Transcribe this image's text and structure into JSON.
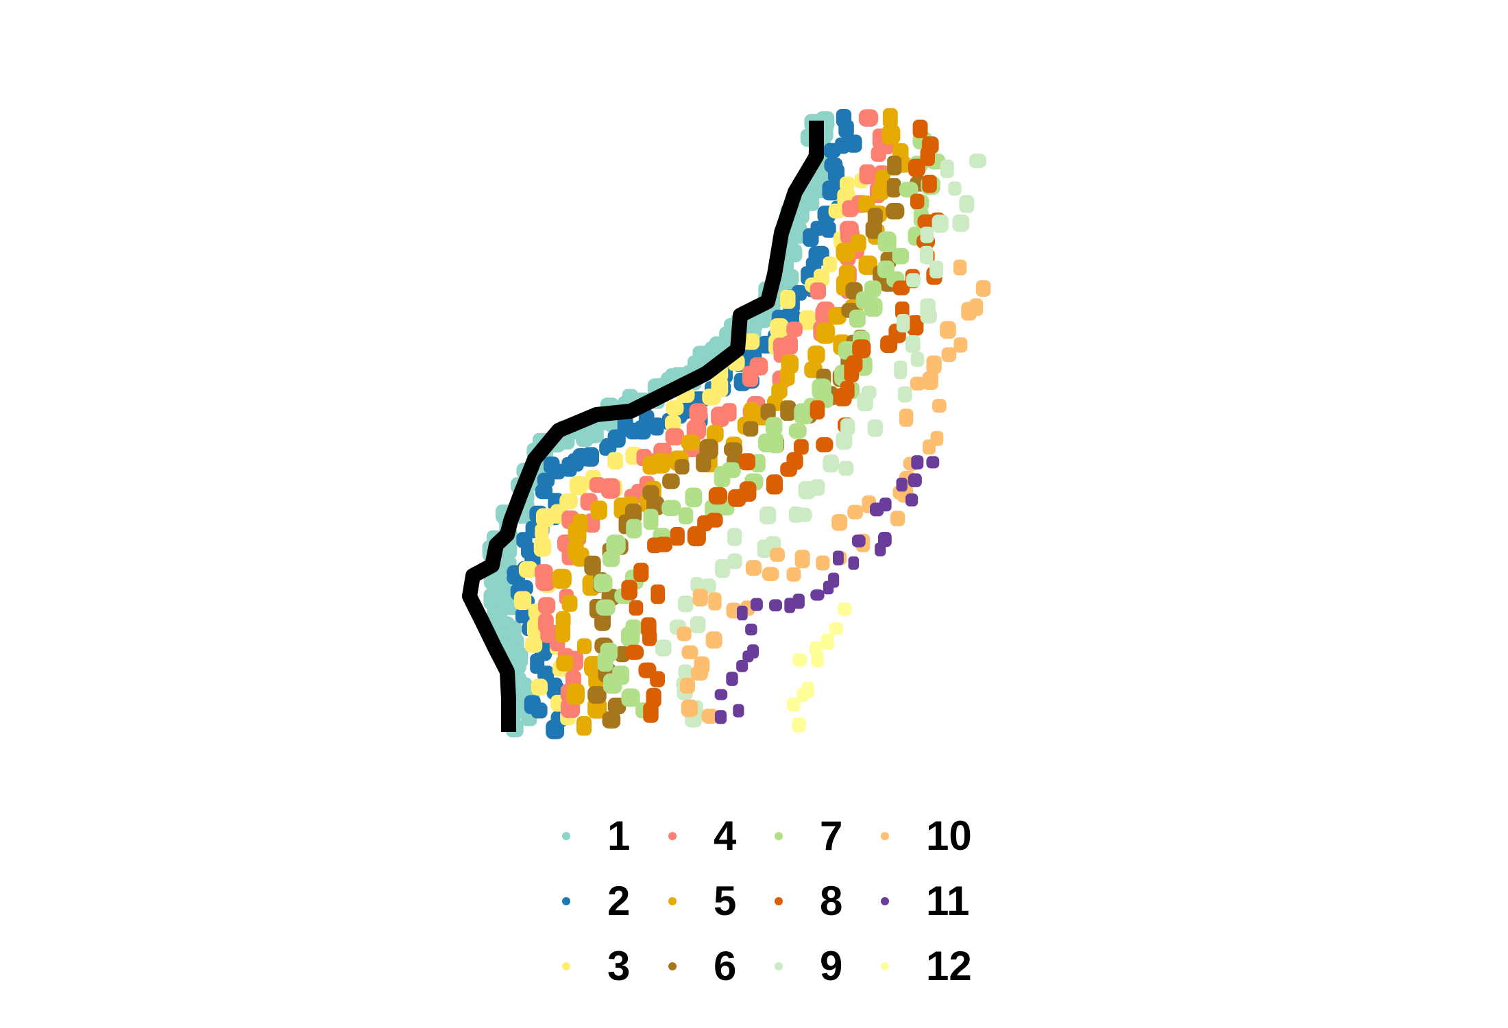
{
  "chart_data": {
    "type": "scatter",
    "title": "",
    "xlabel": "",
    "ylabel": "",
    "grid": false,
    "axes": false,
    "legend_position": "bottom",
    "boundary": {
      "color": "#000000",
      "path": [
        [
          1191,
          176
        ],
        [
          1191,
          228
        ],
        [
          1160,
          280
        ],
        [
          1140,
          340
        ],
        [
          1130,
          400
        ],
        [
          1120,
          440
        ],
        [
          1080,
          460
        ],
        [
          1076,
          510
        ],
        [
          1030,
          545
        ],
        [
          970,
          575
        ],
        [
          920,
          600
        ],
        [
          870,
          605
        ],
        [
          815,
          628
        ],
        [
          780,
          670
        ],
        [
          760,
          720
        ],
        [
          745,
          760
        ],
        [
          740,
          780
        ],
        [
          724,
          795
        ],
        [
          718,
          825
        ],
        [
          690,
          840
        ],
        [
          685,
          870
        ],
        [
          705,
          910
        ],
        [
          722,
          945
        ],
        [
          740,
          980
        ],
        [
          742,
          1020
        ],
        [
          742,
          1068
        ]
      ]
    },
    "series": [
      {
        "name": "1",
        "color": "#8DD3C7",
        "band": [
          [
            1210,
            170
          ],
          [
            1195,
            280
          ],
          [
            1160,
            360
          ],
          [
            1145,
            440
          ],
          [
            1090,
            490
          ],
          [
            1040,
            540
          ],
          [
            960,
            585
          ],
          [
            870,
            630
          ],
          [
            810,
            660
          ],
          [
            775,
            720
          ],
          [
            745,
            790
          ],
          [
            730,
            840
          ],
          [
            748,
            920
          ],
          [
            768,
            1000
          ],
          [
            772,
            1070
          ]
        ],
        "offset": 12,
        "spread": 14,
        "count": 120,
        "size": 26
      },
      {
        "name": "2",
        "color": "#1F78B4",
        "band": [
          [
            1238,
            170
          ],
          [
            1225,
            260
          ],
          [
            1200,
            340
          ],
          [
            1175,
            430
          ],
          [
            1130,
            500
          ],
          [
            1080,
            550
          ],
          [
            990,
            610
          ],
          [
            880,
            650
          ],
          [
            820,
            680
          ],
          [
            800,
            740
          ],
          [
            775,
            800
          ],
          [
            760,
            860
          ],
          [
            782,
            940
          ],
          [
            795,
            1030
          ],
          [
            800,
            1070
          ]
        ],
        "offset": 0,
        "spread": 18,
        "count": 85,
        "size": 24
      },
      {
        "name": "3",
        "color": "#FFED6F",
        "band": [
          [
            1256,
            250
          ],
          [
            1212,
            380
          ],
          [
            1150,
            470
          ],
          [
            1060,
            530
          ],
          [
            960,
            650
          ],
          [
            895,
            690
          ],
          [
            830,
            730
          ],
          [
            790,
            800
          ],
          [
            775,
            880
          ],
          [
            800,
            960
          ],
          [
            812,
            1060
          ]
        ],
        "offset": 0,
        "spread": 20,
        "count": 45,
        "size": 24
      },
      {
        "name": "4",
        "color": "#FB8072",
        "band": [
          [
            1280,
            170
          ],
          [
            1275,
            260
          ],
          [
            1230,
            340
          ],
          [
            1210,
            440
          ],
          [
            1165,
            510
          ],
          [
            1110,
            560
          ],
          [
            1020,
            625
          ],
          [
            920,
            700
          ],
          [
            840,
            760
          ],
          [
            815,
            830
          ],
          [
            812,
            900
          ],
          [
            835,
            990
          ],
          [
            850,
            1030
          ]
        ],
        "offset": 0,
        "spread": 22,
        "count": 60,
        "size": 25
      },
      {
        "name": "5",
        "color": "#E6AB02",
        "band": [
          [
            1300,
            170
          ],
          [
            1290,
            260
          ],
          [
            1265,
            340
          ],
          [
            1240,
            440
          ],
          [
            1200,
            520
          ],
          [
            1130,
            570
          ],
          [
            1050,
            640
          ],
          [
            950,
            705
          ],
          [
            870,
            760
          ],
          [
            840,
            830
          ],
          [
            840,
            900
          ],
          [
            855,
            1000
          ],
          [
            860,
            1070
          ]
        ],
        "offset": 0,
        "spread": 24,
        "count": 55,
        "size": 25
      },
      {
        "name": "6",
        "color": "#A6761D",
        "band": [
          [
            1325,
            230
          ],
          [
            1300,
            330
          ],
          [
            1270,
            420
          ],
          [
            1230,
            500
          ],
          [
            1180,
            580
          ],
          [
            1100,
            640
          ],
          [
            1010,
            700
          ],
          [
            935,
            760
          ],
          [
            880,
            800
          ],
          [
            870,
            880
          ],
          [
            880,
            960
          ],
          [
            895,
            1060
          ]
        ],
        "offset": 0,
        "spread": 26,
        "count": 45,
        "size": 24
      },
      {
        "name": "7",
        "color": "#B2DF8A",
        "band": [
          [
            1355,
            200
          ],
          [
            1330,
            320
          ],
          [
            1300,
            400
          ],
          [
            1270,
            480
          ],
          [
            1210,
            590
          ],
          [
            1140,
            640
          ],
          [
            1060,
            710
          ],
          [
            990,
            760
          ],
          [
            920,
            800
          ],
          [
            900,
            860
          ],
          [
            905,
            940
          ],
          [
            915,
            1050
          ]
        ],
        "offset": 0,
        "spread": 26,
        "count": 55,
        "size": 25
      },
      {
        "name": "8",
        "color": "#D95F02",
        "band": [
          [
            1370,
            180
          ],
          [
            1350,
            320
          ],
          [
            1330,
            420
          ],
          [
            1300,
            500
          ],
          [
            1240,
            580
          ],
          [
            1180,
            640
          ],
          [
            1100,
            700
          ],
          [
            1020,
            760
          ],
          [
            960,
            820
          ],
          [
            940,
            880
          ],
          [
            935,
            960
          ],
          [
            945,
            1050
          ]
        ],
        "offset": 0,
        "spread": 28,
        "count": 50,
        "size": 24
      },
      {
        "name": "9",
        "color": "#CCEBC5",
        "band": [
          [
            1410,
            220
          ],
          [
            1380,
            340
          ],
          [
            1350,
            440
          ],
          [
            1300,
            560
          ],
          [
            1250,
            650
          ],
          [
            1160,
            740
          ],
          [
            1080,
            810
          ],
          [
            1020,
            860
          ],
          [
            990,
            920
          ],
          [
            985,
            1000
          ],
          [
            990,
            1070
          ]
        ],
        "offset": 0,
        "spread": 28,
        "count": 45,
        "size": 22
      },
      {
        "name": "10",
        "color": "#FDBF6F",
        "band": [
          [
            1420,
            390
          ],
          [
            1380,
            520
          ],
          [
            1350,
            620
          ],
          [
            1320,
            720
          ],
          [
            1250,
            780
          ],
          [
            1150,
            830
          ],
          [
            1060,
            870
          ],
          [
            1010,
            920
          ],
          [
            1005,
            1000
          ],
          [
            1010,
            1060
          ]
        ],
        "offset": 0,
        "spread": 30,
        "count": 42,
        "size": 22
      },
      {
        "name": "11",
        "color": "#6A3D9A",
        "band": [
          [
            1360,
            660
          ],
          [
            1300,
            760
          ],
          [
            1240,
            810
          ],
          [
            1180,
            850
          ],
          [
            1120,
            880
          ],
          [
            1080,
            940
          ],
          [
            1070,
            1000
          ],
          [
            1075,
            1060
          ]
        ],
        "offset": 0,
        "spread": 26,
        "count": 28,
        "size": 18
      },
      {
        "name": "12",
        "color": "#FFFF99",
        "band": [
          [
            1245,
            900
          ],
          [
            1200,
            950
          ],
          [
            1170,
            990
          ],
          [
            1150,
            1040
          ],
          [
            1145,
            1060
          ]
        ],
        "offset": 0,
        "spread": 26,
        "count": 10,
        "size": 20
      }
    ]
  },
  "legend": {
    "items": [
      {
        "label": "1",
        "color": "#8DD3C7"
      },
      {
        "label": "2",
        "color": "#1F78B4"
      },
      {
        "label": "3",
        "color": "#FFED6F"
      },
      {
        "label": "4",
        "color": "#FB8072"
      },
      {
        "label": "5",
        "color": "#E6AB02"
      },
      {
        "label": "6",
        "color": "#A6761D"
      },
      {
        "label": "7",
        "color": "#B2DF8A"
      },
      {
        "label": "8",
        "color": "#D95F02"
      },
      {
        "label": "9",
        "color": "#CCEBC5"
      },
      {
        "label": "10",
        "color": "#FDBF6F"
      },
      {
        "label": "11",
        "color": "#6A3D9A"
      },
      {
        "label": "12",
        "color": "#FFFF99"
      }
    ]
  }
}
